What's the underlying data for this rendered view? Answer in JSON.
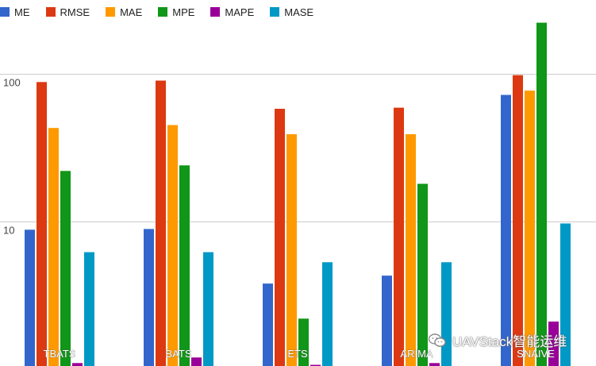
{
  "chart_data": {
    "type": "bar",
    "yscale": "log",
    "ylim": [
      1,
      260
    ],
    "yticks": [
      10,
      100
    ],
    "ytick_labels": [
      "10",
      "100"
    ],
    "grid": true,
    "legend_position": "top-left",
    "categories": [
      "TBATS",
      "BATS",
      "ETS",
      "ARIMA",
      "SNAIVE"
    ],
    "series": [
      {
        "name": "ME",
        "color": "#3366cc",
        "values": [
          8.8,
          8.9,
          3.8,
          4.3,
          72
        ]
      },
      {
        "name": "RMSE",
        "color": "#dc3912",
        "values": [
          88,
          90,
          58,
          59,
          98
        ]
      },
      {
        "name": "MAE",
        "color": "#ff9900",
        "values": [
          43,
          45,
          39,
          39,
          77
        ]
      },
      {
        "name": "MPE",
        "color": "#109618",
        "values": [
          22,
          24,
          2.2,
          18,
          222
        ]
      },
      {
        "name": "MAPE",
        "color": "#990099",
        "values": [
          1.1,
          1.2,
          1.07,
          1.1,
          2.1
        ]
      },
      {
        "name": "MASE",
        "color": "#0099c6",
        "values": [
          6.2,
          6.2,
          5.3,
          5.3,
          9.7
        ]
      }
    ]
  },
  "watermark": {
    "text": "UAVStack智能运维",
    "icon": "wechat-icon"
  }
}
